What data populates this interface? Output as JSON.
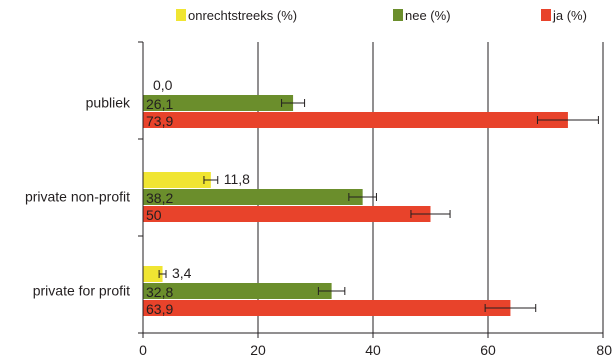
{
  "chart_data": {
    "type": "bar",
    "orientation": "horizontal",
    "categories": [
      "publiek",
      "private non-profit",
      "private for profit"
    ],
    "series": [
      {
        "name": "onrechtstreeks (%)",
        "color": "#f0e532",
        "values": [
          0.0,
          11.8,
          3.4
        ],
        "labels": [
          "0,0",
          "11,8",
          "3,4"
        ],
        "error": [
          0,
          1.2,
          0.6
        ]
      },
      {
        "name": "nee (%)",
        "color": "#6b8e2c",
        "values": [
          26.1,
          38.2,
          32.8
        ],
        "labels": [
          "26,1",
          "38,2",
          "32,8"
        ],
        "error": [
          2.0,
          2.4,
          2.3
        ]
      },
      {
        "name": "ja (%)",
        "color": "#e8432b",
        "values": [
          73.9,
          50,
          63.9
        ],
        "labels": [
          "73,9",
          "50",
          "63,9"
        ],
        "error": [
          5.3,
          3.4,
          4.4
        ]
      }
    ],
    "xlim": [
      0,
      80
    ],
    "xticks": [
      "0",
      "20",
      "40",
      "60",
      "80"
    ],
    "grid": true,
    "legend": "top",
    "title": "",
    "xlabel": "",
    "ylabel": ""
  }
}
